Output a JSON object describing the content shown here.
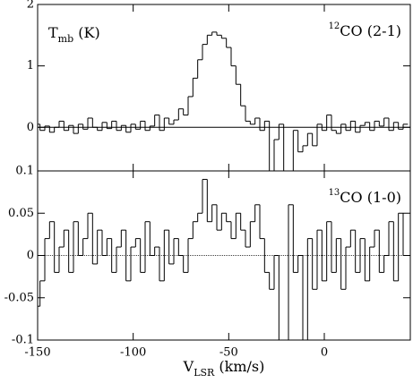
{
  "chart_data": [
    {
      "type": "step",
      "ylabel": {
        "main": "T",
        "sub": "mb",
        "rest": " (K)"
      },
      "annotation": {
        "sup": "12",
        "main": "CO (2-1)"
      },
      "x": [
        -150,
        -147.5,
        -145,
        -142.5,
        -140,
        -137.5,
        -135,
        -132.5,
        -130,
        -127.5,
        -125,
        -122.5,
        -120,
        -117.5,
        -115,
        -112.5,
        -110,
        -107.5,
        -105,
        -102.5,
        -100,
        -97.5,
        -95,
        -92.5,
        -90,
        -87.5,
        -85,
        -82.5,
        -80,
        -77.5,
        -75,
        -72.5,
        -70,
        -67.5,
        -65,
        -62.5,
        -60,
        -57.5,
        -55,
        -52.5,
        -50,
        -47.5,
        -45,
        -42.5,
        -40,
        -37.5,
        -35,
        -32.5,
        -30,
        -27.5,
        -25,
        -22.5,
        -20,
        -17.5,
        -15,
        -12.5,
        -10,
        -7.5,
        -5,
        -2.5,
        0,
        2.5,
        5,
        7.5,
        10,
        12.5,
        15,
        17.5,
        20,
        22.5,
        25,
        27.5,
        30,
        32.5,
        35,
        37.5,
        40,
        42.5
      ],
      "values": [
        0.05,
        -0.05,
        0.02,
        -0.08,
        0.0,
        0.1,
        -0.05,
        0.03,
        -0.1,
        0.05,
        -0.03,
        0.15,
        0.0,
        -0.05,
        0.08,
        -0.02,
        0.1,
        -0.05,
        0.03,
        -0.08,
        0.05,
        -0.03,
        0.1,
        -0.05,
        0.02,
        0.2,
        -0.05,
        0.15,
        0.05,
        0.12,
        0.3,
        0.2,
        0.5,
        0.8,
        1.1,
        1.35,
        1.5,
        1.55,
        1.5,
        1.45,
        1.3,
        1.0,
        0.7,
        0.35,
        0.1,
        0.05,
        0.15,
        -0.05,
        0.1,
        -0.71,
        -0.2,
        0.05,
        -0.71,
        -0.71,
        -0.05,
        -0.4,
        -0.3,
        -0.1,
        -0.3,
        0.05,
        -0.05,
        0.2,
        -0.05,
        -0.1,
        0.05,
        -0.05,
        0.1,
        -0.08,
        0.03,
        0.08,
        -0.05,
        0.1,
        0.02,
        0.15,
        -0.05,
        0.08,
        -0.03,
        0.05
      ],
      "xlim": [
        -150,
        45
      ],
      "ylim": [
        -0.71,
        2
      ],
      "yticks": [
        0,
        1,
        2
      ]
    },
    {
      "type": "step",
      "annotation": {
        "sup": "13",
        "main": "CO (1-0)"
      },
      "xlabel": {
        "main": "V",
        "sub": "LSR",
        "rest": " (km/s)"
      },
      "x": [
        -150,
        -147.5,
        -145,
        -142.5,
        -140,
        -137.5,
        -135,
        -132.5,
        -130,
        -127.5,
        -125,
        -122.5,
        -120,
        -117.5,
        -115,
        -112.5,
        -110,
        -107.5,
        -105,
        -102.5,
        -100,
        -97.5,
        -95,
        -92.5,
        -90,
        -87.5,
        -85,
        -82.5,
        -80,
        -77.5,
        -75,
        -72.5,
        -70,
        -67.5,
        -65,
        -62.5,
        -60,
        -57.5,
        -55,
        -52.5,
        -50,
        -47.5,
        -45,
        -42.5,
        -40,
        -37.5,
        -35,
        -32.5,
        -30,
        -27.5,
        -25,
        -22.5,
        -20,
        -17.5,
        -15,
        -12.5,
        -10,
        -7.5,
        -5,
        -2.5,
        0,
        2.5,
        5,
        7.5,
        10,
        12.5,
        15,
        17.5,
        20,
        22.5,
        25,
        27.5,
        30,
        32.5,
        35,
        37.5,
        40,
        42.5
      ],
      "values": [
        -0.06,
        -0.03,
        0.02,
        0.04,
        -0.02,
        0.01,
        0.03,
        -0.02,
        0.04,
        0.0,
        0.02,
        0.05,
        -0.01,
        0.03,
        0.0,
        0.02,
        -0.02,
        0.01,
        0.03,
        -0.03,
        0.01,
        0.02,
        -0.02,
        0.04,
        0.0,
        0.01,
        -0.03,
        0.03,
        -0.01,
        0.02,
        0.0,
        -0.02,
        0.02,
        0.04,
        0.05,
        0.09,
        0.04,
        0.06,
        0.03,
        0.05,
        0.04,
        0.02,
        0.05,
        0.03,
        0.01,
        0.04,
        0.06,
        0.02,
        -0.02,
        -0.04,
        0.0,
        -0.1,
        -0.1,
        0.06,
        -0.02,
        0.0,
        -0.1,
        0.02,
        -0.04,
        0.03,
        -0.03,
        0.04,
        -0.02,
        0.02,
        -0.04,
        0.01,
        0.03,
        -0.02,
        0.02,
        -0.03,
        0.01,
        0.03,
        -0.02,
        0.0,
        0.04,
        -0.03,
        0.05,
        0.0
      ],
      "xlim": [
        -150,
        45
      ],
      "xticks": [
        -150,
        -100,
        -50,
        0
      ],
      "ylim": [
        -0.1,
        0.1
      ],
      "yticks": [
        0.1,
        0.05,
        0,
        -0.05,
        -0.1
      ]
    }
  ]
}
